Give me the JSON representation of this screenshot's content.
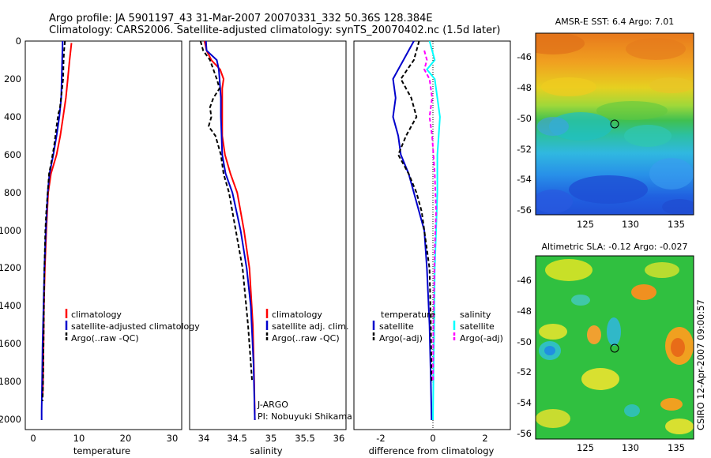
{
  "title": {
    "line1": "Argo profile: JA 5901197_43 31-Mar-2007 20070331_332 50.36S 128.384E",
    "line2": "Climatology: CARS2006. Satellite-adjusted climatology: synTS_20070402.nc (1.5d later)"
  },
  "colors": {
    "climatology": "#ff0000",
    "satellite": "#0000cc",
    "argo": "#000000",
    "sal_satellite": "#00ffff",
    "sal_argo": "#ff00ff"
  },
  "chart_data": [
    {
      "type": "line",
      "panel": "temperature",
      "xlabel": "temperature",
      "ylabel": "",
      "xlim": [
        -1.5,
        32
      ],
      "ylim": [
        2050,
        0
      ],
      "xticks": [
        "0",
        "10",
        "20",
        "30"
      ],
      "yticks": [
        "0",
        "200",
        "400",
        "600",
        "800",
        "1000",
        "1200",
        "1400",
        "1600",
        "1800",
        "2000"
      ],
      "grid": false,
      "legend": {
        "placement": "lower-right",
        "entries": [
          "climatology",
          "satellite-adjusted climatology",
          "Argo(..raw -QC)"
        ]
      },
      "series": [
        {
          "name": "climatology",
          "color": "#ff0000",
          "dash": "",
          "x": [
            8.4,
            8.0,
            7.6,
            7.2,
            6.6,
            6.0,
            5.2,
            4.0,
            3.4,
            3.0,
            2.7,
            2.5,
            2.4,
            2.3,
            2.2
          ],
          "y": [
            10,
            100,
            200,
            300,
            400,
            500,
            600,
            700,
            800,
            1000,
            1200,
            1400,
            1600,
            1800,
            1880
          ]
        },
        {
          "name": "satellite-adjusted climatology",
          "color": "#0000cc",
          "dash": "",
          "x": [
            6.5,
            6.4,
            6.3,
            6.2,
            5.8,
            5.2,
            4.5,
            3.7,
            3.3,
            2.9,
            2.6,
            2.4,
            2.2,
            2.1,
            2.0,
            2.0
          ],
          "y": [
            0,
            100,
            200,
            300,
            400,
            500,
            600,
            700,
            800,
            1000,
            1200,
            1400,
            1600,
            1800,
            1950,
            2000
          ]
        },
        {
          "name": "Argo(..raw -QC)",
          "color": "#000000",
          "dash": "5,3",
          "x": [
            7.0,
            6.8,
            6.7,
            6.6,
            5.9,
            5.6,
            5.2,
            4.7,
            4.0,
            3.6,
            3.3,
            3.0,
            2.8,
            2.6,
            2.5,
            2.4,
            2.3,
            2.2
          ],
          "y": [
            0,
            50,
            100,
            200,
            360,
            380,
            450,
            550,
            650,
            700,
            800,
            900,
            1000,
            1200,
            1400,
            1600,
            1800,
            1900
          ]
        }
      ]
    },
    {
      "type": "line",
      "panel": "salinity",
      "xlabel": "salinity",
      "ylabel": "",
      "xlim": [
        33.8,
        36.1
      ],
      "ylim": [
        2050,
        0
      ],
      "xticks": [
        "34",
        "34.5",
        "35",
        "35.5",
        "36"
      ],
      "grid": false,
      "legend": {
        "placement": "lower-right",
        "entries": [
          "climatology",
          "satellite adj. clim.",
          "Argo(..raw -QC)"
        ]
      },
      "annotations": [
        "J-ARGO",
        "PI: Nobuyuki Shikama"
      ],
      "series": [
        {
          "name": "climatology",
          "color": "#ff0000",
          "dash": "",
          "x": [
            34.02,
            34.05,
            34.12,
            34.25,
            34.3,
            34.28,
            34.28,
            34.28,
            34.28,
            34.32,
            34.4,
            34.5,
            34.6,
            34.68,
            34.73,
            34.75,
            34.76
          ],
          "y": [
            0,
            50,
            100,
            150,
            200,
            250,
            300,
            400,
            500,
            600,
            700,
            800,
            1000,
            1200,
            1500,
            1800,
            2000
          ]
        },
        {
          "name": "satellite adj. clim.",
          "color": "#0000cc",
          "dash": "",
          "x": [
            34.04,
            34.05,
            34.2,
            34.23,
            34.24,
            34.26,
            34.26,
            34.27,
            34.28,
            34.33,
            34.43,
            34.55,
            34.64,
            34.7,
            34.74,
            34.76
          ],
          "y": [
            0,
            50,
            100,
            150,
            200,
            300,
            400,
            500,
            600,
            700,
            800,
            1000,
            1200,
            1400,
            1700,
            2000
          ]
        },
        {
          "name": "Argo(..raw -QC)",
          "color": "#000000",
          "dash": "5,3",
          "x": [
            33.96,
            34.0,
            34.1,
            34.15,
            34.2,
            34.24,
            34.15,
            34.1,
            34.12,
            34.08,
            34.18,
            34.22,
            34.26,
            34.3,
            34.38,
            34.48,
            34.58,
            34.66,
            34.72
          ],
          "y": [
            0,
            50,
            100,
            150,
            200,
            250,
            300,
            350,
            400,
            450,
            500,
            550,
            600,
            700,
            800,
            1000,
            1200,
            1500,
            1800
          ]
        }
      ]
    },
    {
      "type": "line",
      "panel": "difference",
      "xlabel": "difference from climatology",
      "ylabel": "",
      "xlim": [
        -3,
        3
      ],
      "ylim": [
        2050,
        0
      ],
      "xticks": [
        "-2",
        "0",
        "2"
      ],
      "zero_line": 0,
      "grid": false,
      "legend": {
        "placement": "lower-right",
        "columns": [
          {
            "heading": "temperature",
            "entries": [
              "satellite",
              "Argo(-adj)"
            ]
          },
          {
            "heading": "salinity",
            "entries": [
              "satellite",
              "Argo(-adj)"
            ]
          }
        ]
      },
      "series": [
        {
          "group": "temperature",
          "name": "satellite",
          "color": "#0000cc",
          "dash": "",
          "x": [
            -0.7,
            -0.9,
            -1.1,
            -1.5,
            -1.4,
            -1.5,
            -1.3,
            -1.2,
            -0.9,
            -0.7,
            -0.5,
            -0.3,
            -0.2,
            -0.1,
            -0.05,
            -0.02
          ],
          "y": [
            0,
            50,
            100,
            200,
            300,
            400,
            500,
            600,
            700,
            800,
            900,
            1000,
            1200,
            1500,
            1800,
            2000
          ]
        },
        {
          "group": "temperature",
          "name": "Argo(-adj)",
          "color": "#000000",
          "dash": "5,3",
          "x": [
            -0.5,
            -0.6,
            -0.7,
            -1.2,
            -0.8,
            -0.6,
            -1.0,
            -1.3,
            -0.9,
            -0.6,
            -0.4,
            -0.3,
            -0.1,
            -0.05,
            -0.02
          ],
          "y": [
            0,
            50,
            100,
            200,
            300,
            400,
            500,
            600,
            700,
            800,
            900,
            1000,
            1200,
            1500,
            1800
          ]
        },
        {
          "group": "salinity",
          "name": "satellite",
          "color": "#00ffff",
          "dash": "",
          "x": [
            -0.1,
            0.0,
            0.1,
            -0.2,
            0.1,
            0.3,
            0.25,
            0.2,
            0.2,
            0.15,
            0.1,
            0.08,
            0.05,
            0.03
          ],
          "y": [
            0,
            50,
            100,
            150,
            200,
            400,
            500,
            600,
            800,
            1000,
            1200,
            1500,
            1800,
            2000
          ]
        },
        {
          "group": "salinity",
          "name": "Argo(-adj)",
          "color": "#ff00ff",
          "dash": "5,3",
          "x": [
            -0.3,
            -0.2,
            -0.3,
            -0.1,
            0.0,
            -0.1,
            0.0,
            0.1,
            0.15,
            0.1,
            0.08,
            0.05,
            0.03
          ],
          "y": [
            50,
            100,
            150,
            200,
            300,
            400,
            500,
            700,
            900,
            1100,
            1300,
            1500,
            1800
          ]
        }
      ]
    },
    {
      "type": "heatmap",
      "panel": "sst_map",
      "title": "AMSR-E SST: 6.4 Argo: 7.01",
      "xlim": [
        120.5,
        136.5
      ],
      "ylim": [
        -56.5,
        -44.6
      ],
      "xticks": [
        "125",
        "130",
        "135"
      ],
      "yticks": [
        "-46",
        "-48",
        "-50",
        "-52",
        "-54",
        "-56"
      ],
      "marker": {
        "lon": 128.384,
        "lat": -50.36
      }
    },
    {
      "type": "heatmap",
      "panel": "sla_map",
      "title": "Altimetric SLA: -0.12 Argo: -0.027",
      "xlim": [
        120.5,
        136.5
      ],
      "ylim": [
        -56.5,
        -44.6
      ],
      "xticks": [
        "125",
        "130",
        "135"
      ],
      "yticks": [
        "-46",
        "-48",
        "-50",
        "-52",
        "-54",
        "-56"
      ],
      "marker": {
        "lon": 128.384,
        "lat": -50.36
      }
    }
  ],
  "footer": {
    "credit": "CSIRO 12-Apr-2007 09:00:57"
  }
}
